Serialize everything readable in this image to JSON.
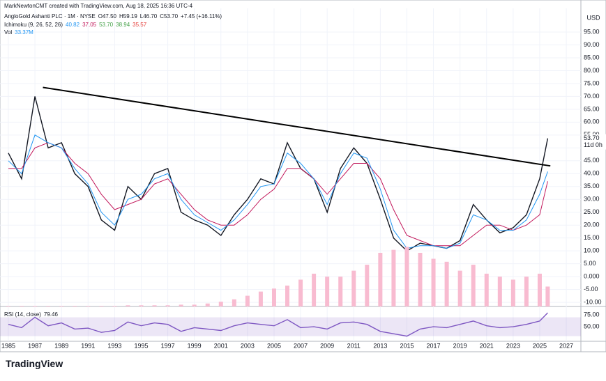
{
  "attribution": "MarkNewtonCMT created with TradingView.com, Aug 18, 2025 16:36 UTC-4",
  "brand": "TradingView",
  "chart_data": [
    {
      "type": "line",
      "title": "AngloGold Ashanti PLC · 1M · NYSE",
      "ohlc": [
        "O47.50",
        "H59.19",
        "L46.70",
        "C53.70",
        "+7.45 (+16.11%)"
      ],
      "currency": "USD",
      "indicator": {
        "label": "Ichimoku (9, 26, 52, 26)",
        "values": [
          {
            "text": "40.82",
            "color": "#2196f3"
          },
          {
            "text": "37.05",
            "color": "#c2185b"
          },
          {
            "text": "53.70",
            "color": "#43a047"
          },
          {
            "text": "38.94",
            "color": "#43a047"
          },
          {
            "text": "35.57",
            "color": "#e53935"
          }
        ]
      },
      "volume_label": {
        "name": "Vol",
        "value": "33.37M"
      },
      "last_price_label": "53.70",
      "countdown": "11d 0h",
      "x": [
        1985,
        1986,
        1987,
        1988,
        1989,
        1990,
        1991,
        1992,
        1993,
        1994,
        1995,
        1996,
        1997,
        1998,
        1999,
        2000,
        2001,
        2002,
        2003,
        2004,
        2005,
        2006,
        2007,
        2008,
        2009,
        2010,
        2011,
        2012,
        2013,
        2014,
        2015,
        2016,
        2017,
        2018,
        2019,
        2020,
        2021,
        2022,
        2023,
        2024,
        2025,
        2025.6
      ],
      "series": [
        {
          "color": "#131722",
          "values": [
            48,
            38,
            70,
            50,
            52,
            40,
            35,
            22,
            18,
            35,
            30,
            40,
            42,
            25,
            22,
            20,
            16,
            24,
            30,
            38,
            36,
            52,
            42,
            38,
            25,
            42,
            50,
            44,
            30,
            15,
            10,
            13,
            12,
            11,
            14,
            28,
            22,
            17,
            19,
            24,
            38,
            53.7
          ]
        },
        {
          "color": "#c2185b",
          "values": [
            42,
            42,
            50,
            52,
            50,
            44,
            40,
            32,
            26,
            28,
            30,
            36,
            38,
            32,
            26,
            22,
            20,
            20,
            24,
            30,
            34,
            42,
            42,
            38,
            32,
            38,
            44,
            44,
            38,
            26,
            16,
            14,
            12,
            12,
            12,
            16,
            20,
            20,
            18,
            20,
            24,
            37.05
          ]
        },
        {
          "color": "#2196f3",
          "values": [
            45,
            40,
            55,
            52,
            50,
            42,
            36,
            25,
            20,
            30,
            32,
            38,
            40,
            30,
            24,
            21,
            18,
            22,
            28,
            35,
            36,
            48,
            44,
            38,
            28,
            40,
            48,
            46,
            34,
            18,
            11,
            12,
            12,
            11,
            13,
            24,
            22,
            18,
            18,
            22,
            32,
            40.82
          ]
        },
        {
          "color": "#f8bbd0",
          "axis": "y2",
          "type": "bar",
          "values": [
            1,
            1,
            1,
            1,
            1,
            1,
            1,
            1,
            1,
            2,
            2,
            2,
            2,
            3,
            3,
            5,
            8,
            12,
            18,
            25,
            30,
            35,
            45,
            55,
            50,
            50,
            60,
            70,
            90,
            95,
            100,
            90,
            80,
            75,
            60,
            70,
            55,
            50,
            45,
            50,
            55,
            33.37
          ]
        }
      ],
      "trendline": {
        "x": [
          1987.6,
          2025.8
        ],
        "y": [
          73.5,
          43
        ]
      },
      "xlim": [
        1984.37,
        2028.1
      ],
      "ylim": [
        -11.6,
        104.2
      ],
      "y2lim": [
        0,
        500
      ],
      "yticks": [
        {
          "value": 95,
          "label": "95.00"
        },
        {
          "value": 90,
          "label": "90.00"
        },
        {
          "value": 85,
          "label": "85.00"
        },
        {
          "value": 80,
          "label": "80.00"
        },
        {
          "value": 75,
          "label": "75.00"
        },
        {
          "value": 70,
          "label": "70.00"
        },
        {
          "value": 65,
          "label": "65.00"
        },
        {
          "value": 60,
          "label": "60.00"
        },
        {
          "value": 55,
          "label": "55.00"
        },
        {
          "value": 50,
          "label": "50.00"
        },
        {
          "value": 45,
          "label": "45.00"
        },
        {
          "value": 40,
          "label": "40.00"
        },
        {
          "value": 35,
          "label": "35.00"
        },
        {
          "value": 30,
          "label": "30.00"
        },
        {
          "value": 25,
          "label": "25.00"
        },
        {
          "value": 20,
          "label": "20.00"
        },
        {
          "value": 15,
          "label": "15.00"
        },
        {
          "value": 10,
          "label": "10.00"
        },
        {
          "value": 5,
          "label": "5.00"
        },
        {
          "value": 0,
          "label": "0.000"
        },
        {
          "value": -5,
          "label": "-5.00"
        },
        {
          "value": -10,
          "label": "-10.00"
        }
      ],
      "xticks": [
        1985,
        1987,
        1989,
        1991,
        1993,
        1995,
        1997,
        1999,
        2001,
        2003,
        2005,
        2007,
        2009,
        2011,
        2013,
        2015,
        2017,
        2019,
        2021,
        2023,
        2025,
        2027
      ],
      "grid": true
    },
    {
      "type": "line",
      "title": "RSI (14, close)",
      "band": [
        30,
        70
      ],
      "ylim": [
        22,
        90
      ],
      "yticks": [
        {
          "value": 75,
          "label": "75.00"
        },
        {
          "value": 50,
          "label": "50.00"
        }
      ],
      "series": [
        {
          "color": "#7e57c2",
          "values": [
            55,
            48,
            70,
            52,
            58,
            45,
            47,
            38,
            42,
            60,
            52,
            58,
            55,
            40,
            48,
            45,
            42,
            52,
            58,
            55,
            52,
            65,
            48,
            50,
            45,
            58,
            60,
            55,
            40,
            35,
            30,
            45,
            50,
            48,
            55,
            62,
            52,
            48,
            50,
            55,
            62,
            79.46
          ]
        }
      ]
    }
  ]
}
